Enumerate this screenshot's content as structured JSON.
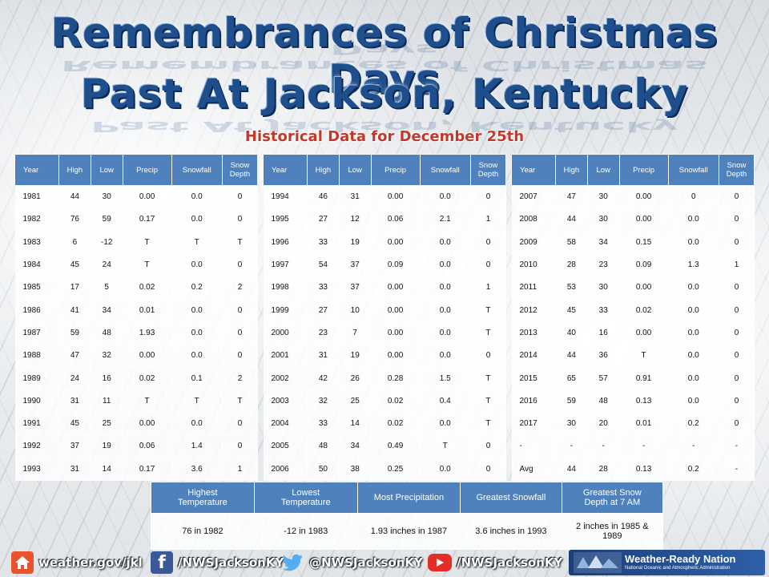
{
  "title_line1": "Remembrances of Christmas Days",
  "title_line2": "Past At Jackson, Kentucky",
  "subtitle": "Historical Data for December 25th",
  "columns": {
    "year": "Year",
    "high": "High",
    "low": "Low",
    "precip": "Precip",
    "snowfall": "Snowfall",
    "snow_depth_1": "Snow",
    "snow_depth_2": "Depth"
  },
  "table1": [
    [
      "1981",
      "44",
      "30",
      "0.00",
      "0.0",
      "0"
    ],
    [
      "1982",
      "76",
      "59",
      "0.17",
      "0.0",
      "0"
    ],
    [
      "1983",
      "6",
      "-12",
      "T",
      "T",
      "T"
    ],
    [
      "1984",
      "45",
      "24",
      "T",
      "0.0",
      "0"
    ],
    [
      "1985",
      "17",
      "5",
      "0.02",
      "0.2",
      "2"
    ],
    [
      "1986",
      "41",
      "34",
      "0.01",
      "0.0",
      "0"
    ],
    [
      "1987",
      "59",
      "48",
      "1.93",
      "0.0",
      "0"
    ],
    [
      "1988",
      "47",
      "32",
      "0.00",
      "0.0",
      "0"
    ],
    [
      "1989",
      "24",
      "16",
      "0.02",
      "0.1",
      "2"
    ],
    [
      "1990",
      "31",
      "11",
      "T",
      "T",
      "T"
    ],
    [
      "1991",
      "45",
      "25",
      "0.00",
      "0.0",
      "0"
    ],
    [
      "1992",
      "37",
      "19",
      "0.06",
      "1.4",
      "0"
    ],
    [
      "1993",
      "31",
      "14",
      "0.17",
      "3.6",
      "1"
    ]
  ],
  "table2": [
    [
      "1994",
      "46",
      "31",
      "0.00",
      "0.0",
      "0"
    ],
    [
      "1995",
      "27",
      "12",
      "0.06",
      "2.1",
      "1"
    ],
    [
      "1996",
      "33",
      "19",
      "0.00",
      "0.0",
      "0"
    ],
    [
      "1997",
      "54",
      "37",
      "0.09",
      "0.0",
      "0"
    ],
    [
      "1998",
      "33",
      "37",
      "0.00",
      "0.0",
      "1"
    ],
    [
      "1999",
      "27",
      "10",
      "0.00",
      "0.0",
      "T"
    ],
    [
      "2000",
      "23",
      "7",
      "0.00",
      "0.0",
      "T"
    ],
    [
      "2001",
      "31",
      "19",
      "0.00",
      "0.0",
      "0"
    ],
    [
      "2002",
      "42",
      "26",
      "0.28",
      "1.5",
      "T"
    ],
    [
      "2003",
      "32",
      "25",
      "0.02",
      "0.4",
      "T"
    ],
    [
      "2004",
      "33",
      "14",
      "0.02",
      "0.0",
      "T"
    ],
    [
      "2005",
      "48",
      "34",
      "0.49",
      "T",
      "0"
    ],
    [
      "2006",
      "50",
      "38",
      "0.25",
      "0.0",
      "0"
    ]
  ],
  "table3": [
    [
      "2007",
      "47",
      "30",
      "0.00",
      "0",
      "0"
    ],
    [
      "2008",
      "44",
      "30",
      "0.00",
      "0.0",
      "0"
    ],
    [
      "2009",
      "58",
      "34",
      "0.15",
      "0.0",
      "0"
    ],
    [
      "2010",
      "28",
      "23",
      "0.09",
      "1.3",
      "1"
    ],
    [
      "2011",
      "53",
      "30",
      "0.00",
      "0.0",
      "0"
    ],
    [
      "2012",
      "45",
      "33",
      "0.02",
      "0.0",
      "0"
    ],
    [
      "2013",
      "40",
      "16",
      "0.00",
      "0.0",
      "0"
    ],
    [
      "2014",
      "44",
      "36",
      "T",
      "0.0",
      "0"
    ],
    [
      "2015",
      "65",
      "57",
      "0.91",
      "0.0",
      "0"
    ],
    [
      "2016",
      "59",
      "48",
      "0.13",
      "0.0",
      "0"
    ],
    [
      "2017",
      "30",
      "20",
      "0.01",
      "0.2",
      "0"
    ],
    [
      "-",
      "-",
      "-",
      "-",
      "-",
      "-"
    ],
    [
      "Avg",
      "44",
      "28",
      "0.13",
      "0.2",
      "-"
    ]
  ],
  "summary": {
    "headers": [
      [
        "Highest",
        "Temperature"
      ],
      [
        "Lowest",
        "Temperature"
      ],
      [
        "Most Precipitation",
        ""
      ],
      [
        "Greatest Snowfall",
        ""
      ],
      [
        "Greatest Snow",
        "Depth at 7 AM"
      ]
    ],
    "values": [
      "76 in 1982",
      "-12 in 1983",
      "1.93 inches in 1987",
      "3.6 inches in 1993",
      "2 inches in 1985 & 1989"
    ]
  },
  "footer": {
    "website": "weather.gov/jkl",
    "facebook": "/NWSJacksonKY",
    "twitter": "@NWSJacksonKY",
    "youtube": "/NWSJacksonKY",
    "wrn_title": "Weather-Ready Nation",
    "wrn_subtitle": "National Oceanic and Atmospheric Administration"
  },
  "colors": {
    "header_blue": "#4f81bd",
    "title_blue": "#1f4e8c",
    "subtitle_red": "#c0392b"
  },
  "icons": [
    "home-icon",
    "facebook-icon",
    "twitter-icon",
    "youtube-icon",
    "noaa-wrn-logo"
  ]
}
